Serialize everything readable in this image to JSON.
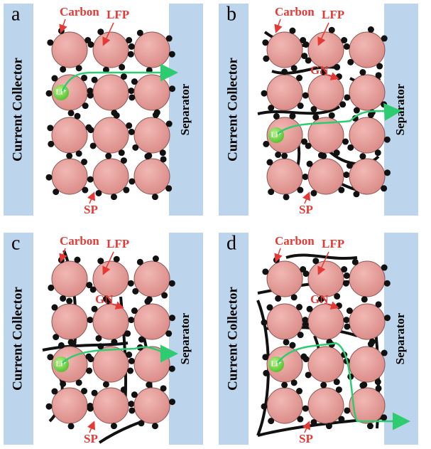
{
  "panels": [
    {
      "label": "a",
      "collector": "Current Collector",
      "separator": "Separator",
      "carbon": "Carbon",
      "lfp": "LFP",
      "sp": "SP",
      "li": "Li⁺"
    },
    {
      "label": "b",
      "collector": "Current Collector",
      "separator": "Separator",
      "carbon": "Carbon",
      "lfp": "LFP",
      "sp": "SP",
      "li": "Li⁺",
      "gn": "GN"
    },
    {
      "label": "c",
      "collector": "Current Collector",
      "separator": "Separator",
      "carbon": "Carbon",
      "lfp": "LFP",
      "sp": "SP",
      "li": "Li⁺",
      "gn": "GN"
    },
    {
      "label": "d",
      "collector": "Current Collector",
      "separator": "Separator",
      "carbon": "Carbon",
      "lfp": "LFP",
      "sp": "SP",
      "li": "Li⁺",
      "gn": "GN"
    }
  ]
}
